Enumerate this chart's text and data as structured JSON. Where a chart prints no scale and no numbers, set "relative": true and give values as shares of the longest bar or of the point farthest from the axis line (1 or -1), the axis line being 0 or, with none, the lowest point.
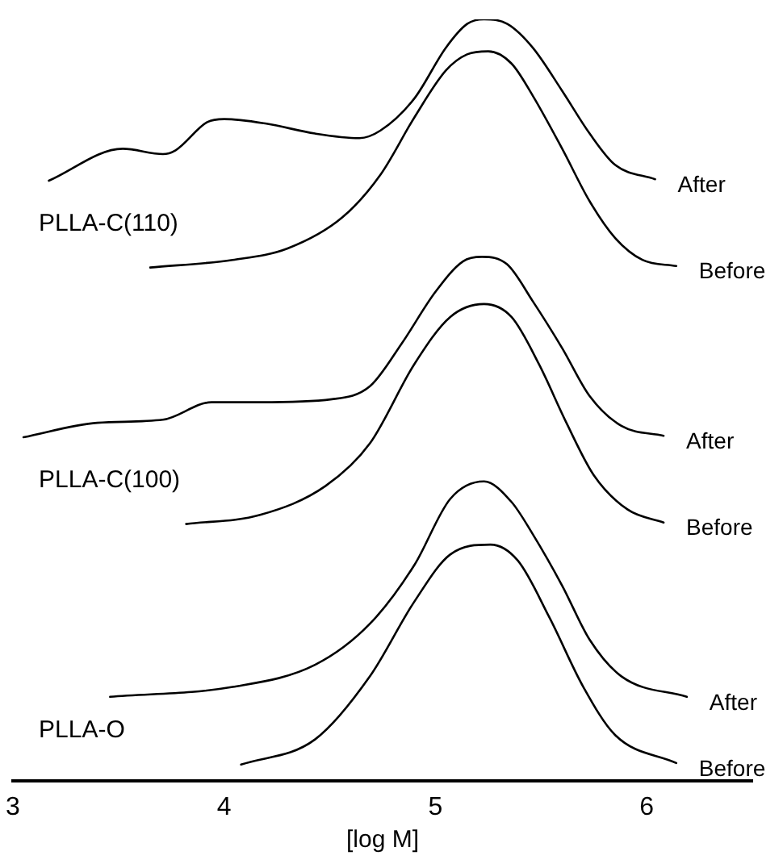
{
  "chart_data": {
    "type": "line",
    "relative": true,
    "xlabel": "[log M]",
    "xlim": [
      3,
      6.5
    ],
    "xticks": [
      3,
      4,
      5,
      6
    ],
    "grid": false,
    "legend": false,
    "marker": "none",
    "line_style": "solid",
    "annotations": [
      "PLLA-C(110)",
      "PLLA-C(100)",
      "PLLA-O"
    ],
    "series": [
      {
        "name": "After",
        "color": "#000000",
        "x": [
          3.17,
          3.52,
          3.71,
          3.77,
          3.92,
          4.0,
          4.2,
          4.43,
          4.64,
          4.74,
          4.9,
          5.05,
          5.15,
          5.23,
          5.34,
          5.46,
          5.6,
          5.73,
          5.85,
          6.04
        ],
        "values": [
          0.788,
          0.83,
          0.823,
          0.828,
          0.865,
          0.869,
          0.863,
          0.85,
          0.844,
          0.854,
          0.896,
          0.963,
          0.994,
          1.0,
          0.994,
          0.963,
          0.906,
          0.85,
          0.809,
          0.79
        ]
      },
      {
        "name": "Before",
        "color": "#000000",
        "x": [
          3.65,
          4.04,
          4.3,
          4.56,
          4.74,
          4.9,
          5.05,
          5.15,
          5.25,
          5.36,
          5.46,
          5.6,
          5.73,
          5.85,
          5.98,
          6.14
        ],
        "values": [
          0.674,
          0.684,
          0.699,
          0.74,
          0.796,
          0.871,
          0.933,
          0.954,
          0.958,
          0.942,
          0.9,
          0.83,
          0.761,
          0.713,
          0.684,
          0.676
        ]
      },
      {
        "name": "After",
        "color": "#000000",
        "x": [
          3.05,
          3.4,
          3.71,
          3.94,
          4.17,
          4.51,
          4.69,
          4.84,
          5.0,
          5.13,
          5.22,
          5.34,
          5.46,
          5.6,
          5.73,
          5.88,
          6.08
        ],
        "values": [
          0.451,
          0.47,
          0.474,
          0.497,
          0.497,
          0.501,
          0.518,
          0.574,
          0.642,
          0.682,
          0.688,
          0.678,
          0.63,
          0.568,
          0.505,
          0.466,
          0.453
        ]
      },
      {
        "name": "Before",
        "color": "#000000",
        "x": [
          3.82,
          4.17,
          4.48,
          4.69,
          4.9,
          5.07,
          5.23,
          5.36,
          5.49,
          5.62,
          5.75,
          5.91,
          6.08
        ],
        "values": [
          0.337,
          0.349,
          0.387,
          0.443,
          0.547,
          0.609,
          0.626,
          0.609,
          0.547,
          0.47,
          0.401,
          0.356,
          0.339
        ]
      },
      {
        "name": "After",
        "color": "#000000",
        "x": [
          3.46,
          4.04,
          4.43,
          4.69,
          4.9,
          5.07,
          5.23,
          5.36,
          5.46,
          5.6,
          5.73,
          5.88,
          6.19
        ],
        "values": [
          0.11,
          0.123,
          0.152,
          0.206,
          0.283,
          0.37,
          0.393,
          0.366,
          0.324,
          0.256,
          0.185,
          0.137,
          0.11
        ]
      },
      {
        "name": "Before",
        "color": "#000000",
        "x": [
          4.08,
          4.43,
          4.69,
          4.9,
          5.07,
          5.26,
          5.39,
          5.54,
          5.7,
          5.85,
          6.14
        ],
        "values": [
          0.021,
          0.054,
          0.137,
          0.235,
          0.297,
          0.31,
          0.289,
          0.214,
          0.123,
          0.06,
          0.023
        ]
      }
    ]
  }
}
